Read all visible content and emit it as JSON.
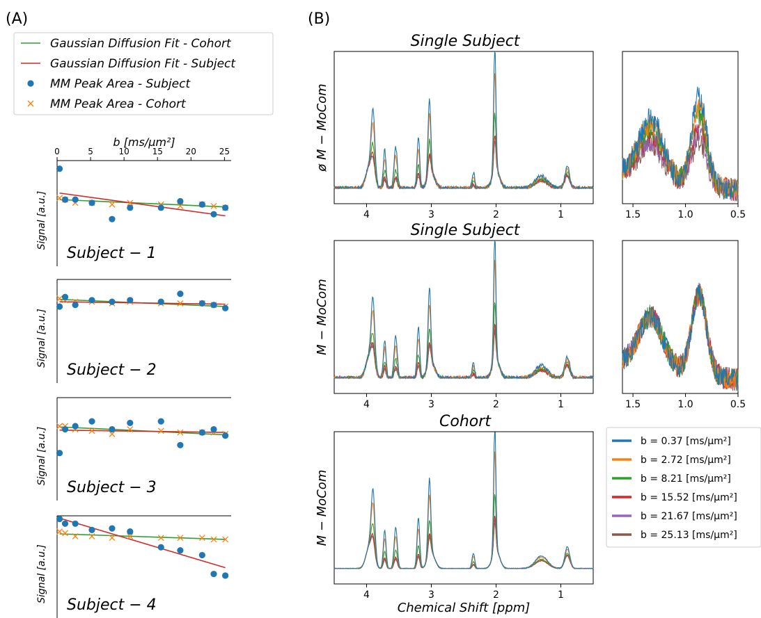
{
  "panels": {
    "a": "(A)",
    "b": "(B)"
  },
  "colors": {
    "blue": "#1f77b4",
    "orange": "#ff7f0e",
    "green": "#2ca02c",
    "red": "#d62728",
    "purple": "#9467bd",
    "brown": "#8c564b"
  },
  "legend_a": [
    {
      "label": "Gaussian Diffusion Fit - Cohort",
      "marker": "line",
      "color": "green"
    },
    {
      "label": "Gaussian Diffusion Fit - Subject",
      "marker": "line",
      "color": "red"
    },
    {
      "label": "MM Peak Area - Subject",
      "marker": "dot",
      "color": "blue"
    },
    {
      "label": "MM Peak Area - Cohort",
      "marker": "cross",
      "color": "orange"
    }
  ],
  "legend_b": [
    {
      "label": "b = 0.37 [ms/μm²]",
      "color": "blue"
    },
    {
      "label": "b = 2.72 [ms/μm²]",
      "color": "orange"
    },
    {
      "label": "b = 8.21 [ms/μm²]",
      "color": "green"
    },
    {
      "label": "b = 15.52 [ms/μm²]",
      "color": "red"
    },
    {
      "label": "b = 21.67 [ms/μm²]",
      "color": "purple"
    },
    {
      "label": "b = 25.13 [ms/μm²]",
      "color": "brown"
    }
  ],
  "chart_data": [
    {
      "type": "scatter",
      "id": "subject-1",
      "title": "Subject − 1",
      "xlabel": "b [ms/μm²]",
      "ylabel": "Signal [a.u.]",
      "xlim": [
        0,
        26
      ],
      "ylim": [
        0.45,
        1.1
      ],
      "xticks": [
        0,
        5,
        10,
        15,
        20,
        25
      ],
      "subject_points": {
        "x": [
          0.37,
          1.2,
          2.72,
          5.2,
          8.21,
          10.9,
          15.52,
          18.4,
          21.67,
          23.4,
          25.13
        ],
        "y": [
          1.05,
          0.86,
          0.86,
          0.84,
          0.74,
          0.81,
          0.81,
          0.85,
          0.83,
          0.77,
          0.81
        ]
      },
      "cohort_points": {
        "x": [
          0.37,
          1.2,
          2.72,
          5.2,
          8.21,
          10.9,
          15.52,
          18.4,
          21.67,
          23.4,
          25.13
        ],
        "y": [
          0.87,
          0.86,
          0.84,
          0.84,
          0.83,
          0.84,
          0.83,
          0.82,
          0.83,
          0.82,
          0.81
        ]
      },
      "fit_cohort": {
        "x": [
          0.37,
          25.13
        ],
        "y": [
          0.86,
          0.815
        ]
      },
      "fit_subject": {
        "x": [
          0.37,
          25.13
        ],
        "y": [
          0.9,
          0.76
        ]
      }
    },
    {
      "type": "scatter",
      "id": "subject-2",
      "title": "Subject − 2",
      "ylabel": "Signal [a.u.]",
      "xlim": [
        0,
        26
      ],
      "ylim": [
        0.45,
        1.1
      ],
      "subject_points": {
        "x": [
          0.37,
          1.2,
          2.72,
          5.2,
          8.21,
          10.9,
          15.52,
          18.4,
          21.67,
          23.4,
          25.13
        ],
        "y": [
          0.93,
          0.99,
          0.94,
          0.97,
          0.96,
          0.97,
          0.96,
          1.01,
          0.95,
          0.94,
          0.92
        ]
      },
      "cohort_points": {
        "x": [
          0.37,
          1.2,
          2.72,
          5.2,
          8.21,
          10.9,
          15.52,
          18.4,
          21.67,
          23.4,
          25.13
        ],
        "y": [
          0.98,
          0.97,
          0.96,
          0.96,
          0.95,
          0.96,
          0.95,
          0.95,
          0.95,
          0.94,
          0.93
        ]
      },
      "fit_cohort": {
        "x": [
          0.37,
          25.13
        ],
        "y": [
          0.975,
          0.93
        ]
      },
      "fit_subject": {
        "x": [
          0.37,
          25.13
        ],
        "y": [
          0.96,
          0.945
        ]
      }
    },
    {
      "type": "scatter",
      "id": "subject-3",
      "title": "Subject − 3",
      "ylabel": "Signal [a.u.]",
      "xlim": [
        0,
        26
      ],
      "ylim": [
        0.45,
        1.1
      ],
      "subject_points": {
        "x": [
          0.37,
          1.2,
          2.72,
          5.2,
          8.21,
          10.9,
          15.52,
          18.4,
          21.67,
          23.4,
          25.13
        ],
        "y": [
          0.75,
          0.9,
          0.92,
          0.95,
          0.9,
          0.94,
          0.95,
          0.8,
          0.88,
          0.9,
          0.86
        ]
      },
      "cohort_points": {
        "x": [
          0.37,
          1.2,
          2.72,
          5.2,
          8.21,
          10.9,
          15.52,
          18.4,
          21.67,
          23.4,
          25.13
        ],
        "y": [
          0.92,
          0.92,
          0.9,
          0.89,
          0.87,
          0.9,
          0.89,
          0.88,
          0.88,
          0.88,
          0.87
        ]
      },
      "fit_cohort": {
        "x": [
          0.37,
          25.13
        ],
        "y": [
          0.915,
          0.865
        ]
      },
      "fit_subject": {
        "x": [
          0.37,
          25.13
        ],
        "y": [
          0.895,
          0.88
        ]
      }
    },
    {
      "type": "scatter",
      "id": "subject-4",
      "title": "Subject − 4",
      "ylabel": "Signal [a.u.]",
      "xlim": [
        0,
        26
      ],
      "ylim": [
        0.45,
        1.1
      ],
      "subject_points": {
        "x": [
          0.37,
          1.2,
          2.72,
          5.2,
          8.21,
          10.9,
          15.52,
          18.4,
          21.67,
          23.4,
          25.13
        ],
        "y": [
          1.08,
          1.05,
          1.05,
          1.01,
          1.02,
          1.0,
          0.9,
          0.88,
          0.85,
          0.73,
          0.72
        ]
      },
      "cohort_points": {
        "x": [
          0.37,
          1.2,
          2.72,
          5.2,
          8.21,
          10.9,
          15.52,
          18.4,
          21.67,
          23.4,
          25.13
        ],
        "y": [
          1.0,
          0.99,
          0.97,
          0.97,
          0.96,
          0.97,
          0.96,
          0.96,
          0.96,
          0.95,
          0.95
        ]
      },
      "fit_cohort": {
        "x": [
          0.37,
          25.13
        ],
        "y": [
          0.985,
          0.95
        ]
      },
      "fit_subject": {
        "x": [
          0.37,
          25.13
        ],
        "y": [
          1.085,
          0.77
        ]
      }
    },
    {
      "type": "line",
      "id": "spectrum-1",
      "title": "Single Subject",
      "ylabel": "ø M − MoCom",
      "xlim": [
        4.5,
        0.5
      ],
      "xticks": [
        4,
        3,
        2,
        1
      ],
      "peaks_ppm": [
        3.9,
        3.72,
        3.55,
        3.2,
        3.0,
        2.35,
        2.02,
        1.7,
        0.9
      ],
      "peak_heights_by_b": [
        0.55,
        0.45,
        0.3,
        0.16,
        0.1,
        0.08
      ],
      "inset": {
        "xlim": [
          1.6,
          0.5
        ],
        "xticks": [
          1.5,
          1.0,
          0.5
        ]
      }
    },
    {
      "type": "line",
      "id": "spectrum-2",
      "title": "Single Subject",
      "ylabel": "M − MoCom",
      "xlim": [
        4.5,
        0.5
      ],
      "xticks": [
        4,
        3,
        2,
        1
      ],
      "inset": {
        "xlim": [
          1.6,
          0.5
        ],
        "xticks": [
          1.5,
          1.0,
          0.5
        ]
      }
    },
    {
      "type": "line",
      "id": "spectrum-cohort",
      "title": "Cohort",
      "ylabel": "M − MoCom",
      "xlabel": "Chemical Shift [ppm]",
      "xlim": [
        4.5,
        0.5
      ],
      "xticks": [
        4,
        3,
        2,
        1
      ]
    }
  ]
}
